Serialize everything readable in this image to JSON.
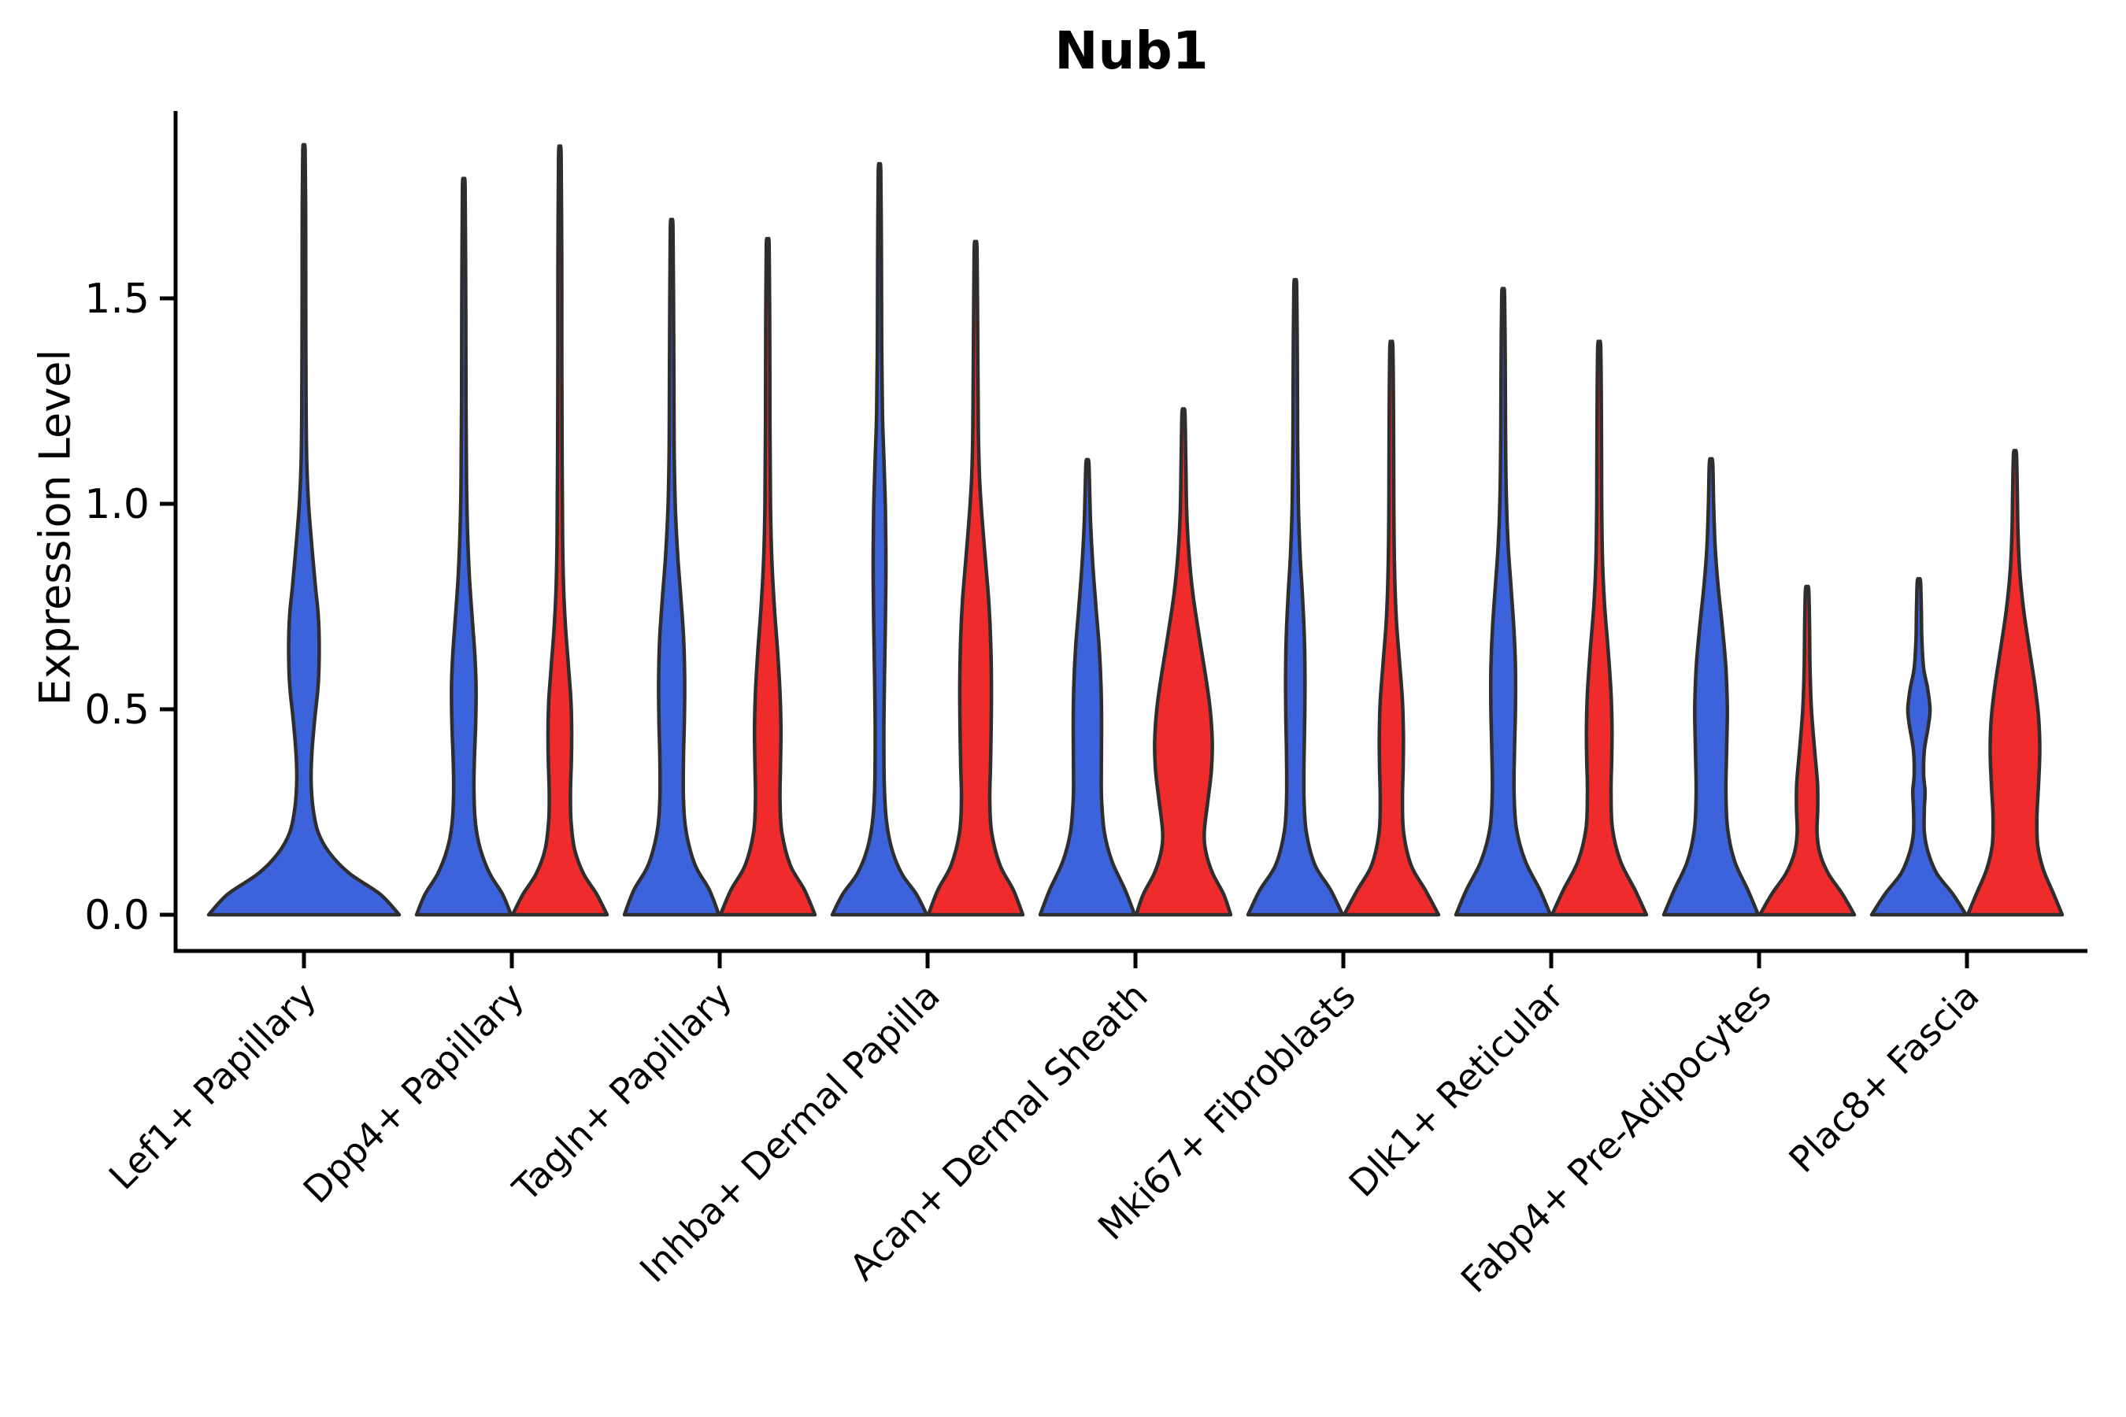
{
  "title": "Nub1",
  "ylabel": "Expression Level",
  "chart_data": {
    "type": "violin",
    "title": "Nub1",
    "xlabel": "",
    "ylabel": "Expression Level",
    "ylim": [
      -0.09,
      1.96
    ],
    "grid": false,
    "legend": "none",
    "yticks": [
      {
        "value": 0.0,
        "label": "0.0"
      },
      {
        "value": 0.5,
        "label": "0.5"
      },
      {
        "value": 1.0,
        "label": "1.0"
      },
      {
        "value": 1.5,
        "label": "1.5"
      }
    ],
    "categories": [
      "Lef1+ Papillary",
      "Dpp4+ Papillary",
      "Tagln+ Papillary",
      "Inhba+ Dermal Papilla",
      "Acan+ Dermal Sheath",
      "Mki67+ Fibroblasts",
      "Dlk1+ Reticular",
      "Fabp4+ Pre-Adipocytes",
      "Plac8+ Fascia"
    ],
    "series_colors": {
      "blue": "#3D63DC",
      "red": "#F02B2B"
    },
    "edge_color": "#2E2E2E",
    "axis_color": "#000000",
    "violins": [
      {
        "category_index": 0,
        "series": "blue",
        "slot": "full",
        "max_value": 1.86,
        "profile": [
          [
            0,
            1.0
          ],
          [
            0.05,
            0.8
          ],
          [
            0.1,
            0.48
          ],
          [
            0.15,
            0.27
          ],
          [
            0.2,
            0.15
          ],
          [
            0.26,
            0.095
          ],
          [
            0.33,
            0.075
          ],
          [
            0.4,
            0.085
          ],
          [
            0.48,
            0.115
          ],
          [
            0.56,
            0.15
          ],
          [
            0.65,
            0.16
          ],
          [
            0.73,
            0.15
          ],
          [
            0.8,
            0.12
          ],
          [
            0.9,
            0.082
          ],
          [
            1.0,
            0.048
          ],
          [
            1.1,
            0.03
          ],
          [
            1.25,
            0.022
          ],
          [
            1.5,
            0.019
          ],
          [
            1.7,
            0.018
          ],
          [
            1.86,
            0.012
          ]
        ]
      },
      {
        "category_index": 1,
        "series": "blue",
        "slot": "left",
        "max_value": 1.77,
        "profile": [
          [
            0,
            1.0
          ],
          [
            0.05,
            0.82
          ],
          [
            0.1,
            0.55
          ],
          [
            0.16,
            0.35
          ],
          [
            0.22,
            0.25
          ],
          [
            0.3,
            0.215
          ],
          [
            0.38,
            0.225
          ],
          [
            0.46,
            0.25
          ],
          [
            0.55,
            0.26
          ],
          [
            0.63,
            0.235
          ],
          [
            0.72,
            0.18
          ],
          [
            0.82,
            0.12
          ],
          [
            0.93,
            0.08
          ],
          [
            1.05,
            0.058
          ],
          [
            1.25,
            0.047
          ],
          [
            1.5,
            0.042
          ],
          [
            1.77,
            0.028
          ]
        ]
      },
      {
        "category_index": 1,
        "series": "red",
        "slot": "right",
        "max_value": 1.85,
        "profile": [
          [
            0,
            1.0
          ],
          [
            0.05,
            0.78
          ],
          [
            0.1,
            0.5
          ],
          [
            0.16,
            0.31
          ],
          [
            0.23,
            0.235
          ],
          [
            0.3,
            0.225
          ],
          [
            0.38,
            0.245
          ],
          [
            0.45,
            0.25
          ],
          [
            0.52,
            0.235
          ],
          [
            0.6,
            0.185
          ],
          [
            0.7,
            0.12
          ],
          [
            0.8,
            0.078
          ],
          [
            0.92,
            0.058
          ],
          [
            1.1,
            0.048
          ],
          [
            1.35,
            0.042
          ],
          [
            1.6,
            0.04
          ],
          [
            1.85,
            0.026
          ]
        ]
      },
      {
        "category_index": 2,
        "series": "blue",
        "slot": "left",
        "max_value": 1.67,
        "profile": [
          [
            0,
            1.0
          ],
          [
            0.06,
            0.8
          ],
          [
            0.12,
            0.5
          ],
          [
            0.2,
            0.31
          ],
          [
            0.28,
            0.25
          ],
          [
            0.38,
            0.25
          ],
          [
            0.48,
            0.27
          ],
          [
            0.58,
            0.275
          ],
          [
            0.68,
            0.25
          ],
          [
            0.78,
            0.19
          ],
          [
            0.88,
            0.125
          ],
          [
            1.0,
            0.075
          ],
          [
            1.15,
            0.052
          ],
          [
            1.4,
            0.044
          ],
          [
            1.67,
            0.028
          ]
        ]
      },
      {
        "category_index": 2,
        "series": "red",
        "slot": "right",
        "max_value": 1.63,
        "profile": [
          [
            0,
            1.0
          ],
          [
            0.06,
            0.78
          ],
          [
            0.12,
            0.48
          ],
          [
            0.2,
            0.3
          ],
          [
            0.28,
            0.26
          ],
          [
            0.36,
            0.27
          ],
          [
            0.45,
            0.28
          ],
          [
            0.54,
            0.26
          ],
          [
            0.64,
            0.21
          ],
          [
            0.75,
            0.14
          ],
          [
            0.87,
            0.085
          ],
          [
            1.0,
            0.058
          ],
          [
            1.2,
            0.047
          ],
          [
            1.45,
            0.042
          ],
          [
            1.63,
            0.03
          ]
        ]
      },
      {
        "category_index": 3,
        "series": "blue",
        "slot": "left",
        "max_value": 1.81,
        "profile": [
          [
            0,
            1.0
          ],
          [
            0.05,
            0.78
          ],
          [
            0.1,
            0.47
          ],
          [
            0.16,
            0.26
          ],
          [
            0.23,
            0.145
          ],
          [
            0.32,
            0.1
          ],
          [
            0.45,
            0.092
          ],
          [
            0.58,
            0.105
          ],
          [
            0.72,
            0.125
          ],
          [
            0.85,
            0.135
          ],
          [
            0.98,
            0.125
          ],
          [
            1.1,
            0.095
          ],
          [
            1.22,
            0.062
          ],
          [
            1.4,
            0.045
          ],
          [
            1.6,
            0.04
          ],
          [
            1.81,
            0.026
          ]
        ]
      },
      {
        "category_index": 3,
        "series": "red",
        "slot": "right",
        "max_value": 1.62,
        "profile": [
          [
            0,
            1.0
          ],
          [
            0.06,
            0.8
          ],
          [
            0.12,
            0.52
          ],
          [
            0.2,
            0.34
          ],
          [
            0.28,
            0.3
          ],
          [
            0.36,
            0.315
          ],
          [
            0.46,
            0.33
          ],
          [
            0.56,
            0.335
          ],
          [
            0.66,
            0.32
          ],
          [
            0.76,
            0.28
          ],
          [
            0.86,
            0.21
          ],
          [
            0.96,
            0.14
          ],
          [
            1.06,
            0.085
          ],
          [
            1.18,
            0.058
          ],
          [
            1.4,
            0.045
          ],
          [
            1.62,
            0.03
          ]
        ]
      },
      {
        "category_index": 4,
        "series": "blue",
        "slot": "left",
        "max_value": 1.1,
        "profile": [
          [
            0,
            1.0
          ],
          [
            0.06,
            0.8
          ],
          [
            0.13,
            0.52
          ],
          [
            0.2,
            0.36
          ],
          [
            0.28,
            0.3
          ],
          [
            0.36,
            0.295
          ],
          [
            0.45,
            0.3
          ],
          [
            0.55,
            0.29
          ],
          [
            0.65,
            0.25
          ],
          [
            0.75,
            0.18
          ],
          [
            0.85,
            0.115
          ],
          [
            0.95,
            0.068
          ],
          [
            1.03,
            0.048
          ],
          [
            1.1,
            0.03
          ]
        ]
      },
      {
        "category_index": 4,
        "series": "red",
        "slot": "right",
        "max_value": 1.22,
        "profile": [
          [
            0,
            1.0
          ],
          [
            0.05,
            0.85
          ],
          [
            0.1,
            0.62
          ],
          [
            0.15,
            0.48
          ],
          [
            0.2,
            0.44
          ],
          [
            0.28,
            0.52
          ],
          [
            0.35,
            0.59
          ],
          [
            0.42,
            0.61
          ],
          [
            0.5,
            0.565
          ],
          [
            0.58,
            0.47
          ],
          [
            0.68,
            0.33
          ],
          [
            0.78,
            0.2
          ],
          [
            0.88,
            0.115
          ],
          [
            0.98,
            0.068
          ],
          [
            1.1,
            0.05
          ],
          [
            1.22,
            0.032
          ]
        ]
      },
      {
        "category_index": 5,
        "series": "blue",
        "slot": "left",
        "max_value": 1.53,
        "profile": [
          [
            0,
            1.0
          ],
          [
            0.06,
            0.75
          ],
          [
            0.12,
            0.42
          ],
          [
            0.2,
            0.235
          ],
          [
            0.28,
            0.185
          ],
          [
            0.38,
            0.185
          ],
          [
            0.48,
            0.2
          ],
          [
            0.58,
            0.205
          ],
          [
            0.68,
            0.19
          ],
          [
            0.78,
            0.15
          ],
          [
            0.88,
            0.1
          ],
          [
            1.0,
            0.065
          ],
          [
            1.15,
            0.05
          ],
          [
            1.35,
            0.044
          ],
          [
            1.53,
            0.03
          ]
        ]
      },
      {
        "category_index": 5,
        "series": "red",
        "slot": "right",
        "max_value": 1.38,
        "profile": [
          [
            0,
            1.0
          ],
          [
            0.06,
            0.72
          ],
          [
            0.12,
            0.42
          ],
          [
            0.2,
            0.26
          ],
          [
            0.28,
            0.235
          ],
          [
            0.36,
            0.25
          ],
          [
            0.44,
            0.255
          ],
          [
            0.52,
            0.235
          ],
          [
            0.62,
            0.17
          ],
          [
            0.72,
            0.105
          ],
          [
            0.84,
            0.068
          ],
          [
            1.0,
            0.052
          ],
          [
            1.2,
            0.046
          ],
          [
            1.38,
            0.032
          ]
        ]
      },
      {
        "category_index": 6,
        "series": "blue",
        "slot": "left",
        "max_value": 1.51,
        "profile": [
          [
            0,
            1.0
          ],
          [
            0.06,
            0.78
          ],
          [
            0.13,
            0.47
          ],
          [
            0.21,
            0.28
          ],
          [
            0.3,
            0.23
          ],
          [
            0.4,
            0.24
          ],
          [
            0.5,
            0.26
          ],
          [
            0.6,
            0.26
          ],
          [
            0.7,
            0.225
          ],
          [
            0.8,
            0.165
          ],
          [
            0.9,
            0.105
          ],
          [
            1.02,
            0.066
          ],
          [
            1.18,
            0.05
          ],
          [
            1.35,
            0.044
          ],
          [
            1.51,
            0.03
          ]
        ]
      },
      {
        "category_index": 6,
        "series": "red",
        "slot": "right",
        "max_value": 1.38,
        "profile": [
          [
            0,
            1.0
          ],
          [
            0.06,
            0.76
          ],
          [
            0.13,
            0.45
          ],
          [
            0.21,
            0.28
          ],
          [
            0.3,
            0.25
          ],
          [
            0.38,
            0.265
          ],
          [
            0.46,
            0.27
          ],
          [
            0.55,
            0.245
          ],
          [
            0.65,
            0.185
          ],
          [
            0.75,
            0.115
          ],
          [
            0.86,
            0.07
          ],
          [
            1.0,
            0.052
          ],
          [
            1.2,
            0.046
          ],
          [
            1.38,
            0.032
          ]
        ]
      },
      {
        "category_index": 7,
        "series": "blue",
        "slot": "left",
        "max_value": 1.1,
        "profile": [
          [
            0,
            1.0
          ],
          [
            0.06,
            0.78
          ],
          [
            0.13,
            0.5
          ],
          [
            0.21,
            0.35
          ],
          [
            0.3,
            0.315
          ],
          [
            0.4,
            0.33
          ],
          [
            0.5,
            0.345
          ],
          [
            0.6,
            0.315
          ],
          [
            0.7,
            0.24
          ],
          [
            0.8,
            0.15
          ],
          [
            0.9,
            0.085
          ],
          [
            1.0,
            0.055
          ],
          [
            1.1,
            0.035
          ]
        ]
      },
      {
        "category_index": 7,
        "series": "red",
        "slot": "right",
        "max_value": 0.79,
        "profile": [
          [
            0,
            1.0
          ],
          [
            0.05,
            0.75
          ],
          [
            0.1,
            0.45
          ],
          [
            0.15,
            0.27
          ],
          [
            0.2,
            0.21
          ],
          [
            0.26,
            0.225
          ],
          [
            0.32,
            0.22
          ],
          [
            0.4,
            0.16
          ],
          [
            0.5,
            0.092
          ],
          [
            0.6,
            0.062
          ],
          [
            0.7,
            0.052
          ],
          [
            0.79,
            0.035
          ]
        ]
      },
      {
        "category_index": 8,
        "series": "blue",
        "slot": "left",
        "max_value": 0.81,
        "profile": [
          [
            0,
            1.0
          ],
          [
            0.05,
            0.72
          ],
          [
            0.1,
            0.38
          ],
          [
            0.15,
            0.2
          ],
          [
            0.2,
            0.115
          ],
          [
            0.26,
            0.115
          ],
          [
            0.3,
            0.13
          ],
          [
            0.34,
            0.1
          ],
          [
            0.4,
            0.115
          ],
          [
            0.46,
            0.2
          ],
          [
            0.5,
            0.235
          ],
          [
            0.55,
            0.185
          ],
          [
            0.6,
            0.1
          ],
          [
            0.67,
            0.062
          ],
          [
            0.74,
            0.052
          ],
          [
            0.81,
            0.035
          ]
        ]
      },
      {
        "category_index": 8,
        "series": "red",
        "slot": "right",
        "max_value": 1.12,
        "profile": [
          [
            0,
            1.0
          ],
          [
            0.05,
            0.82
          ],
          [
            0.11,
            0.6
          ],
          [
            0.17,
            0.48
          ],
          [
            0.24,
            0.465
          ],
          [
            0.32,
            0.5
          ],
          [
            0.4,
            0.525
          ],
          [
            0.48,
            0.5
          ],
          [
            0.56,
            0.42
          ],
          [
            0.65,
            0.3
          ],
          [
            0.74,
            0.185
          ],
          [
            0.83,
            0.105
          ],
          [
            0.92,
            0.066
          ],
          [
            1.02,
            0.05
          ],
          [
            1.12,
            0.032
          ]
        ]
      }
    ]
  }
}
